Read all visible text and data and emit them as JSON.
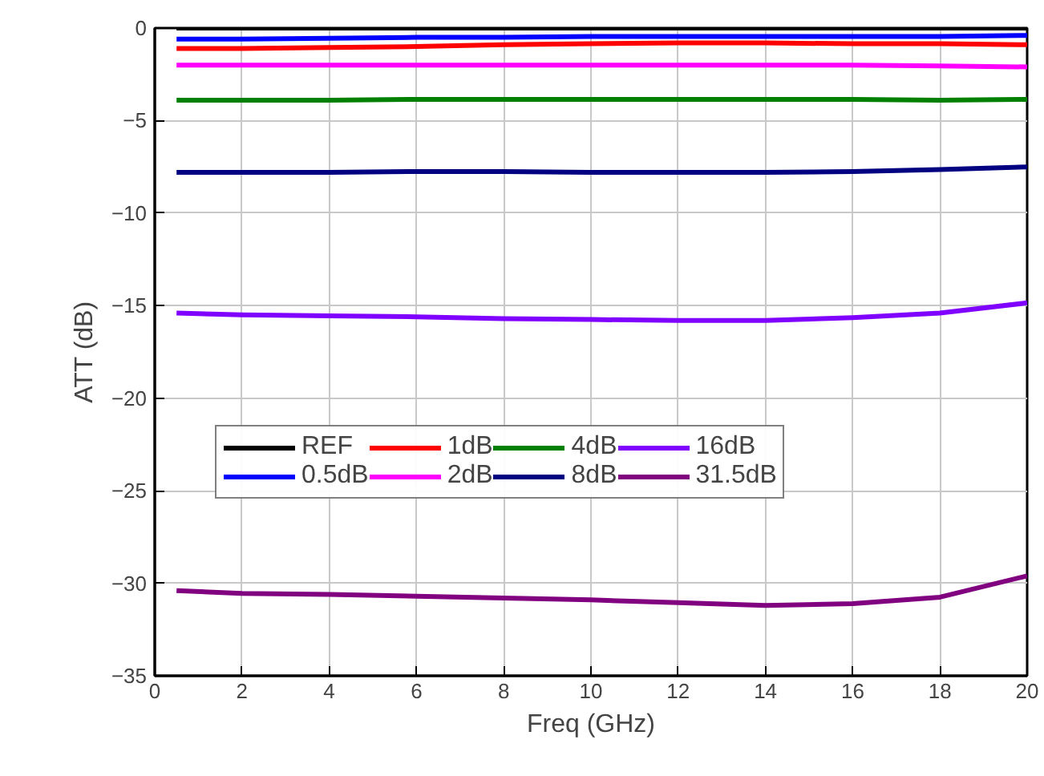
{
  "chart_data": {
    "type": "line",
    "xlabel": "Freq (GHz)",
    "ylabel": "ATT (dB)",
    "x": [
      0.5,
      2,
      4,
      6,
      8,
      10,
      12,
      14,
      16,
      18,
      20
    ],
    "xlim": [
      0,
      20
    ],
    "xticks": [
      0,
      2,
      4,
      6,
      8,
      10,
      12,
      14,
      16,
      18,
      20
    ],
    "ylim": [
      -35,
      0
    ],
    "yticks": [
      -35,
      -30,
      -25,
      -20,
      -15,
      -10,
      -5,
      0
    ],
    "grid": true,
    "legend": "center",
    "marker": "none",
    "line_style": "solid",
    "series": [
      {
        "name": "REF",
        "color": "#000000",
        "values": [
          0,
          0,
          0,
          0,
          0,
          0,
          0,
          0,
          0,
          0,
          0
        ]
      },
      {
        "name": "0.5dB",
        "color": "#0000ff",
        "values": [
          -0.6,
          -0.6,
          -0.55,
          -0.5,
          -0.5,
          -0.45,
          -0.45,
          -0.45,
          -0.45,
          -0.45,
          -0.4
        ]
      },
      {
        "name": "1dB",
        "color": "#ff0000",
        "values": [
          -1.1,
          -1.1,
          -1.05,
          -1.0,
          -0.9,
          -0.85,
          -0.8,
          -0.8,
          -0.85,
          -0.85,
          -0.9
        ]
      },
      {
        "name": "2dB",
        "color": "#ff00ff",
        "values": [
          -2.0,
          -2.0,
          -2.0,
          -2.0,
          -2.0,
          -2.0,
          -2.0,
          -2.0,
          -2.0,
          -2.05,
          -2.1
        ]
      },
      {
        "name": "4dB",
        "color": "#008000",
        "values": [
          -3.9,
          -3.9,
          -3.9,
          -3.85,
          -3.85,
          -3.85,
          -3.85,
          -3.85,
          -3.85,
          -3.9,
          -3.85
        ]
      },
      {
        "name": "8dB",
        "color": "#000080",
        "values": [
          -7.8,
          -7.8,
          -7.8,
          -7.75,
          -7.75,
          -7.8,
          -7.8,
          -7.8,
          -7.75,
          -7.65,
          -7.5
        ]
      },
      {
        "name": "16dB",
        "color": "#8000ff",
        "values": [
          -15.4,
          -15.5,
          -15.55,
          -15.6,
          -15.7,
          -15.75,
          -15.8,
          -15.8,
          -15.65,
          -15.4,
          -14.85
        ]
      },
      {
        "name": "31.5dB",
        "color": "#800080",
        "values": [
          -30.4,
          -30.55,
          -30.6,
          -30.7,
          -30.8,
          -30.9,
          -31.05,
          -31.2,
          -31.1,
          -30.75,
          -29.6
        ]
      }
    ]
  }
}
